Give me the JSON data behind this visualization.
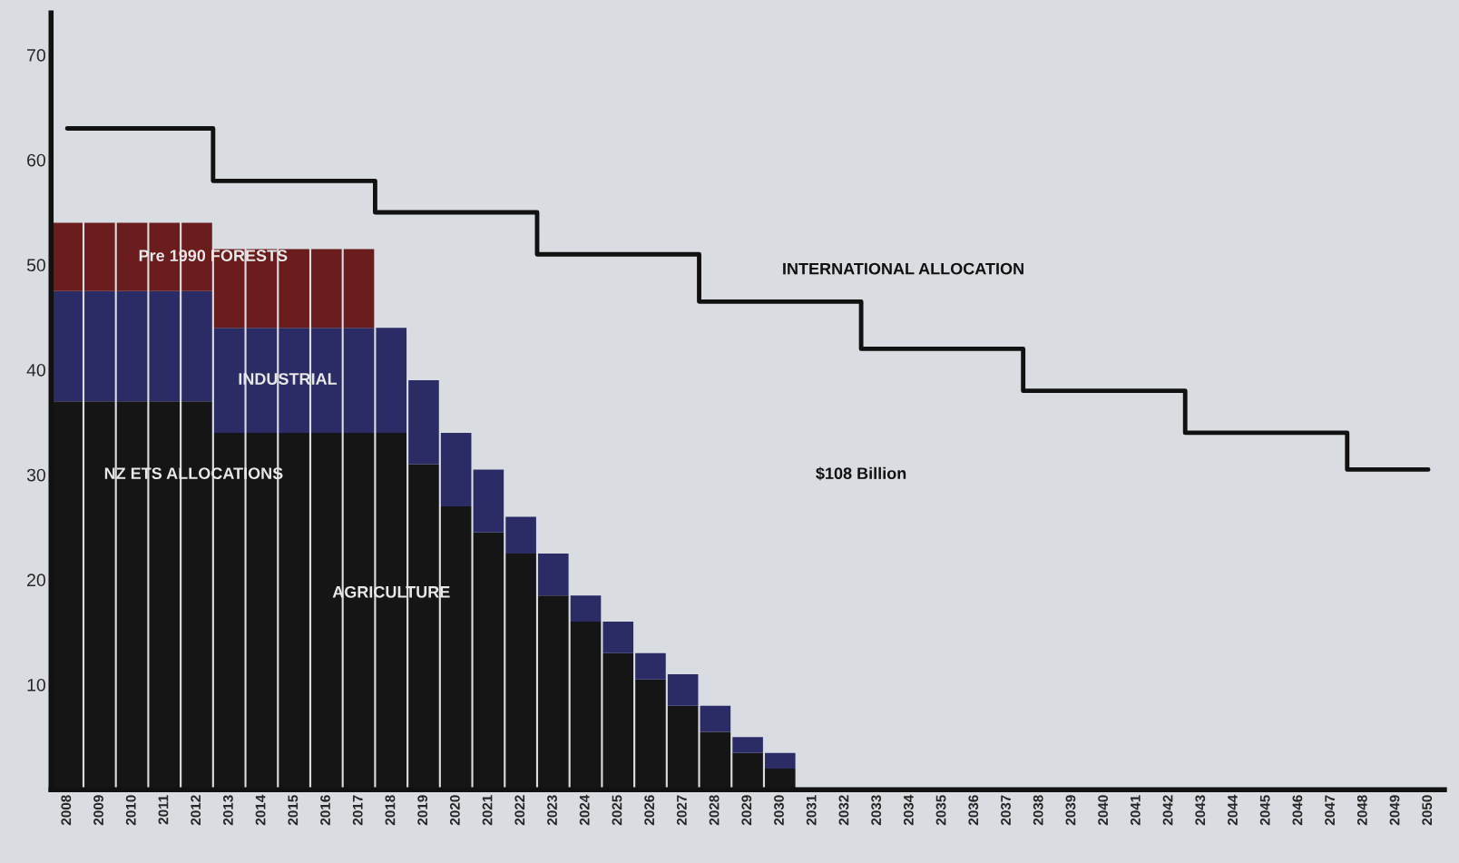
{
  "chart_data": {
    "type": "bar",
    "stacked": true,
    "categories": [
      "2008",
      "2009",
      "2010",
      "2011",
      "2012",
      "2013",
      "2014",
      "2015",
      "2016",
      "2017",
      "2018",
      "2019",
      "2020",
      "2021",
      "2022",
      "2023",
      "2024",
      "2025",
      "2026",
      "2027",
      "2028",
      "2029",
      "2030",
      "2031",
      "2032",
      "2033",
      "2034",
      "2035",
      "2036",
      "2037",
      "2038",
      "2039",
      "2040",
      "2041",
      "2042",
      "2043",
      "2044",
      "2045",
      "2046",
      "2047",
      "2048",
      "2049",
      "2050"
    ],
    "series": [
      {
        "name": "AGRICULTURE",
        "color": "#151515",
        "values": [
          37,
          37,
          37,
          37,
          37,
          34,
          34,
          34,
          34,
          34,
          34,
          31,
          27,
          24.5,
          22.5,
          18.5,
          16,
          13,
          10.5,
          8,
          5.5,
          3.5,
          2,
          0,
          0,
          0,
          0,
          0,
          0,
          0,
          0,
          0,
          0,
          0,
          0,
          0,
          0,
          0,
          0,
          0,
          0,
          0,
          0
        ]
      },
      {
        "name": "INDUSTRIAL",
        "color": "#2b2b66",
        "values": [
          10.5,
          10.5,
          10.5,
          10.5,
          10.5,
          10,
          10,
          10,
          10,
          10,
          10,
          8,
          7,
          6,
          3.5,
          4,
          2.5,
          3,
          2.5,
          3,
          2.5,
          1.5,
          1.5,
          0,
          0,
          0,
          0,
          0,
          0,
          0,
          0,
          0,
          0,
          0,
          0,
          0,
          0,
          0,
          0,
          0,
          0,
          0,
          0
        ]
      },
      {
        "name": "Pre 1990 FORESTS",
        "color": "#6b1c1c",
        "values": [
          6.5,
          6.5,
          6.5,
          6.5,
          6.5,
          7.5,
          7.5,
          7.5,
          7.5,
          7.5,
          0,
          0,
          0,
          0,
          0,
          0,
          0,
          0,
          0,
          0,
          0,
          0,
          0,
          0,
          0,
          0,
          0,
          0,
          0,
          0,
          0,
          0,
          0,
          0,
          0,
          0,
          0,
          0,
          0,
          0,
          0,
          0,
          0
        ]
      },
      {
        "name": "INTERNATIONAL ALLOCATION",
        "type": "step",
        "color": "#111111",
        "values": [
          63,
          63,
          63,
          63,
          63,
          58,
          58,
          58,
          58,
          58,
          55,
          55,
          55,
          55,
          55,
          51,
          51,
          51,
          51,
          51,
          46.5,
          46.5,
          46.5,
          46.5,
          46.5,
          42,
          42,
          42,
          42,
          42,
          38,
          38,
          38,
          38,
          38,
          34,
          34,
          34,
          34,
          34,
          30.5,
          30.5,
          30.5
        ]
      }
    ],
    "ylim": [
      0,
      74
    ],
    "yticks": [
      10,
      20,
      30,
      40,
      50,
      60,
      70
    ],
    "annotations": [
      "NZ ETS ALLOCATIONS",
      "$108 Billion"
    ],
    "grid": false,
    "legend": false
  }
}
